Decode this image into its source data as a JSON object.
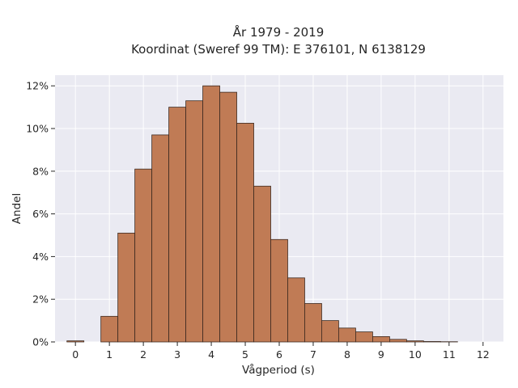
{
  "chart_data": {
    "type": "bar",
    "title": "År 1979 - 2019",
    "subtitle": "Koordinat (Sweref 99 TM): E 376101, N 6138129",
    "xlabel": "Vågperiod (s)",
    "ylabel": "Andel",
    "xlim": [
      -0.6,
      12.6
    ],
    "ylim": [
      0,
      0.125
    ],
    "xticks": [
      0,
      1,
      2,
      3,
      4,
      5,
      6,
      7,
      8,
      9,
      10,
      11,
      12
    ],
    "xtick_labels": [
      "0",
      "1",
      "2",
      "3",
      "4",
      "5",
      "6",
      "7",
      "8",
      "9",
      "10",
      "11",
      "12"
    ],
    "yticks": [
      0,
      0.02,
      0.04,
      0.06,
      0.08,
      0.1,
      0.12
    ],
    "ytick_labels": [
      "0%",
      "2%",
      "4%",
      "6%",
      "8%",
      "10%",
      "12%"
    ],
    "bin_width": 0.5,
    "bin_starts": [
      -0.25,
      0.75,
      1.25,
      1.75,
      2.25,
      2.75,
      3.25,
      3.75,
      4.25,
      4.75,
      5.25,
      5.75,
      6.25,
      6.75,
      7.25,
      7.75,
      8.25,
      8.75,
      9.25,
      9.75,
      10.25,
      10.75
    ],
    "values": [
      0.0005,
      0.012,
      0.051,
      0.081,
      0.097,
      0.11,
      0.113,
      0.12,
      0.117,
      0.1025,
      0.073,
      0.048,
      0.03,
      0.018,
      0.01,
      0.0065,
      0.0047,
      0.0025,
      0.0012,
      0.0005,
      0.0002,
      0.0001
    ],
    "grid": true,
    "colors": {
      "bar_fill": "#c07b55",
      "bar_edge": "#3d2a20",
      "plot_bg": "#eaeaf2",
      "grid": "#ffffff"
    }
  }
}
